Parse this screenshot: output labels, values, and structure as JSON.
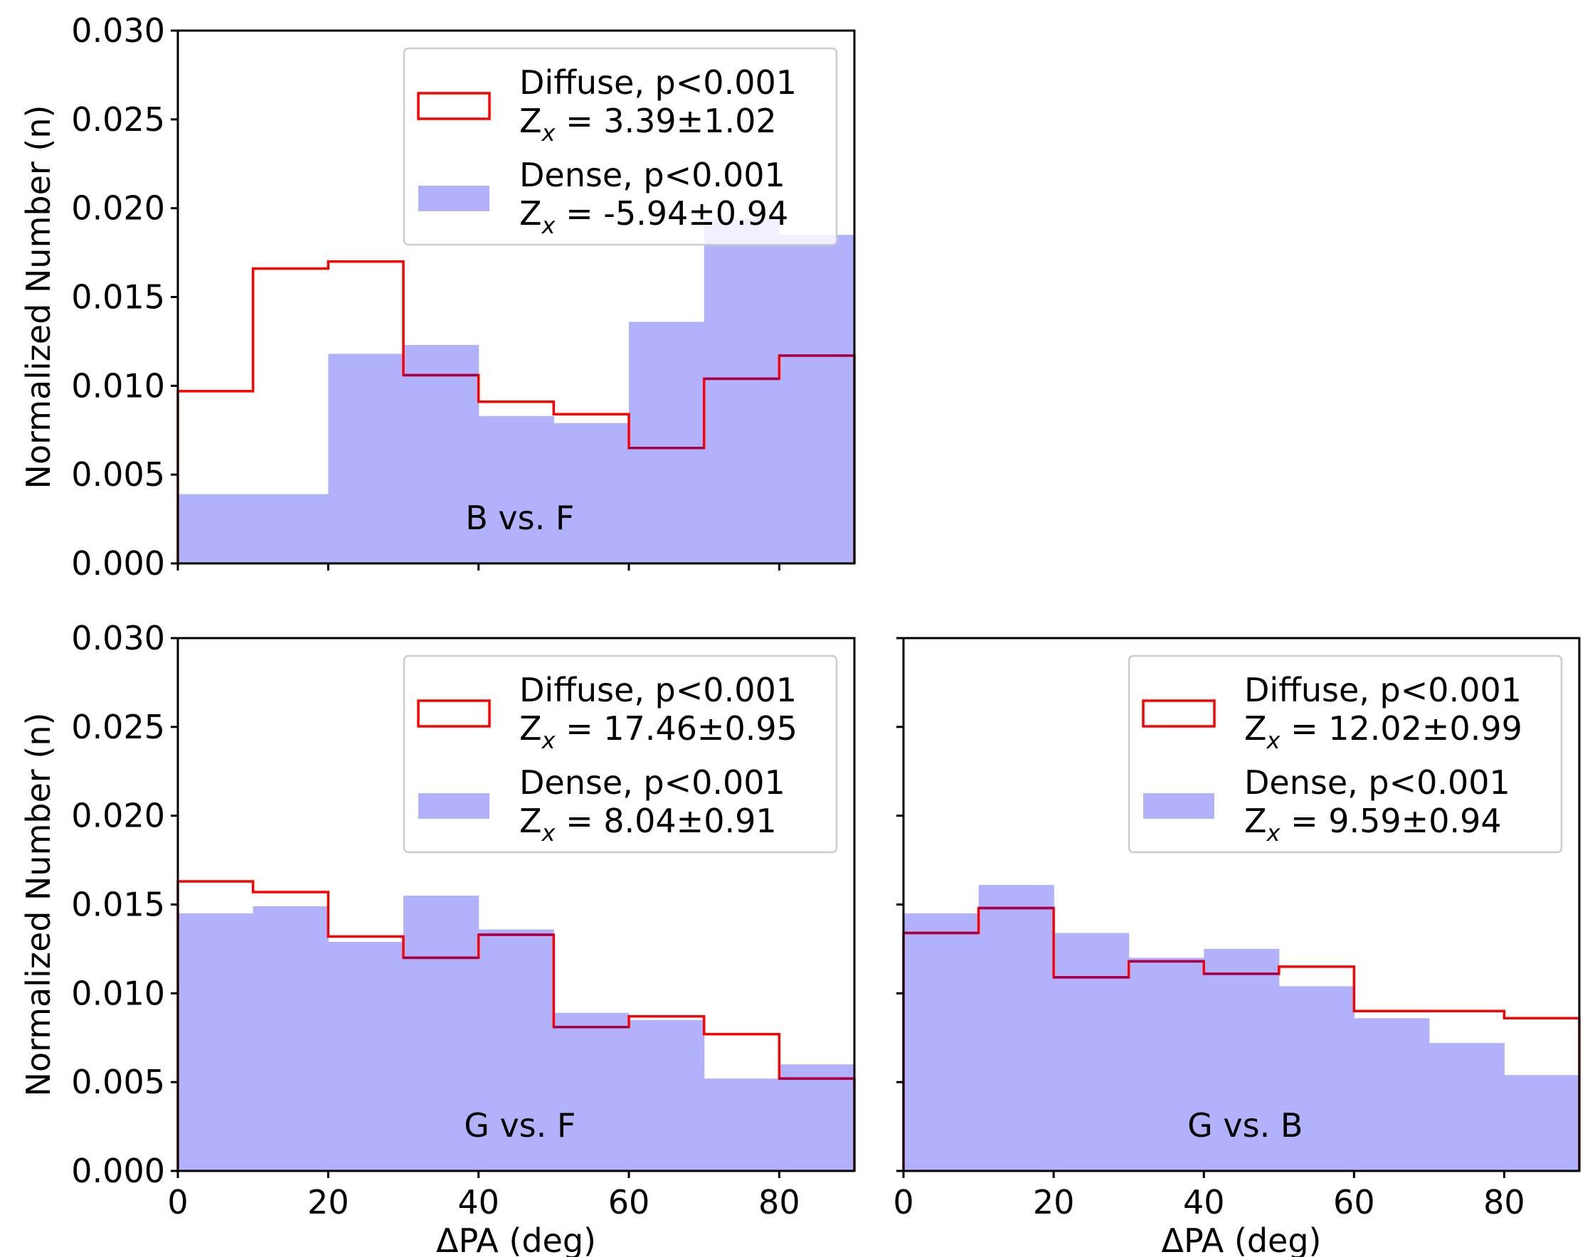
{
  "colors": {
    "diffuse": "#ff0000",
    "dense": "#b2b2fc",
    "overlap": "#a40048",
    "axes": "#000000",
    "legend_frame": "#cccccc"
  },
  "chart_data": [
    {
      "type": "histogram",
      "panel": "top-left",
      "label": "B vs. F",
      "bins": [
        0,
        10,
        20,
        30,
        40,
        50,
        60,
        70,
        80,
        90
      ],
      "xlim": [
        0,
        90
      ],
      "ylim": [
        0,
        0.03
      ],
      "xticks": [
        0,
        20,
        40,
        60,
        80
      ],
      "xtick_labels": [
        "",
        "",
        "",
        "",
        ""
      ],
      "yticks": [
        0,
        0.005,
        0.01,
        0.015,
        0.02,
        0.025,
        0.03
      ],
      "ytick_labels": [
        "0.000",
        "0.005",
        "0.010",
        "0.015",
        "0.020",
        "0.025",
        "0.030"
      ],
      "xlabel": "",
      "ylabel": "Normalized Number (n)",
      "series": [
        {
          "name": "Diffuse",
          "style": "step",
          "values": [
            0.0097,
            0.0166,
            0.017,
            0.0106,
            0.0091,
            0.0084,
            0.0065,
            0.0104,
            0.0117
          ]
        },
        {
          "name": "Dense",
          "style": "filled",
          "values": [
            0.0039,
            0.0039,
            0.0118,
            0.0123,
            0.0083,
            0.0079,
            0.0136,
            0.0194,
            0.0185
          ]
        }
      ],
      "legend": [
        {
          "line1": "Diffuse, p<0.001",
          "z_prefix": "Z",
          "z_sub": "x",
          "z_value": " = 3.39±1.02"
        },
        {
          "line1": "Dense,  p<0.001",
          "z_prefix": "Z",
          "z_sub": "x",
          "z_value": " = -5.94±0.94"
        }
      ],
      "legend_position": "upper-right"
    },
    {
      "type": "histogram",
      "panel": "bottom-left",
      "label": "G vs. F",
      "bins": [
        0,
        10,
        20,
        30,
        40,
        50,
        60,
        70,
        80,
        90
      ],
      "xlim": [
        0,
        90
      ],
      "ylim": [
        0,
        0.03
      ],
      "xticks": [
        0,
        20,
        40,
        60,
        80
      ],
      "xtick_labels": [
        "0",
        "20",
        "40",
        "60",
        "80"
      ],
      "yticks": [
        0,
        0.005,
        0.01,
        0.015,
        0.02,
        0.025,
        0.03
      ],
      "ytick_labels": [
        "0.000",
        "0.005",
        "0.010",
        "0.015",
        "0.020",
        "0.025",
        "0.030"
      ],
      "xlabel": "ΔPA (deg)",
      "ylabel": "Normalized Number (n)",
      "series": [
        {
          "name": "Diffuse",
          "style": "step",
          "values": [
            0.0163,
            0.0157,
            0.0132,
            0.012,
            0.0133,
            0.0081,
            0.0087,
            0.0077,
            0.0052
          ]
        },
        {
          "name": "Dense",
          "style": "filled",
          "values": [
            0.0145,
            0.0149,
            0.0129,
            0.0155,
            0.0136,
            0.0089,
            0.0085,
            0.0052,
            0.006
          ]
        }
      ],
      "legend": [
        {
          "line1": "Diffuse, p<0.001",
          "z_prefix": "Z",
          "z_sub": "x",
          "z_value": " = 17.46±0.95"
        },
        {
          "line1": "Dense,  p<0.001",
          "z_prefix": "Z",
          "z_sub": "x",
          "z_value": " = 8.04±0.91"
        }
      ],
      "legend_position": "upper-right"
    },
    {
      "type": "histogram",
      "panel": "bottom-right",
      "label": "G vs. B",
      "bins": [
        0,
        10,
        20,
        30,
        40,
        50,
        60,
        70,
        80,
        90
      ],
      "xlim": [
        0,
        90
      ],
      "ylim": [
        0,
        0.03
      ],
      "xticks": [
        0,
        20,
        40,
        60,
        80
      ],
      "xtick_labels": [
        "0",
        "20",
        "40",
        "60",
        "80"
      ],
      "yticks": [
        0,
        0.005,
        0.01,
        0.015,
        0.02,
        0.025,
        0.03
      ],
      "ytick_labels": [
        "",
        "",
        "",
        "",
        "",
        "",
        ""
      ],
      "xlabel": "ΔPA (deg)",
      "ylabel": "",
      "series": [
        {
          "name": "Diffuse",
          "style": "step",
          "values": [
            0.0134,
            0.0148,
            0.0109,
            0.0118,
            0.0111,
            0.0115,
            0.009,
            0.009,
            0.0086
          ]
        },
        {
          "name": "Dense",
          "style": "filled",
          "values": [
            0.0145,
            0.0161,
            0.0134,
            0.012,
            0.0125,
            0.0104,
            0.0086,
            0.0072,
            0.0054
          ]
        }
      ],
      "legend": [
        {
          "line1": "Diffuse, p<0.001",
          "z_prefix": "Z",
          "z_sub": "x",
          "z_value": " = 12.02±0.99"
        },
        {
          "line1": "Dense,  p<0.001",
          "z_prefix": "Z",
          "z_sub": "x",
          "z_value": " = 9.59±0.94"
        }
      ],
      "legend_position": "upper-right"
    }
  ]
}
